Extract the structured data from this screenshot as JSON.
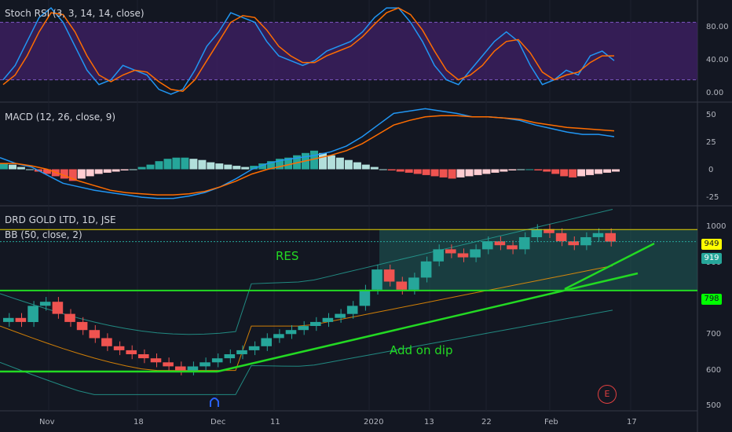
{
  "panels": {
    "stoch": {
      "label": "Stoch RSI (3, 3, 14, 14, close)",
      "ticks": [
        "80.00",
        "40.00",
        "0.00"
      ]
    },
    "macd": {
      "label": "MACD (12, 26, close, 9)",
      "ticks": [
        "50",
        "25",
        "0",
        "-25"
      ]
    },
    "price": {
      "label": "DRD GOLD LTD, 1D, JSE",
      "bb_label": "BB (50, close, 2)",
      "ticks": [
        "1000",
        "900",
        "800",
        "700",
        "600",
        "500"
      ]
    }
  },
  "x_labels": [
    "Nov",
    "18",
    "Dec",
    "11",
    "2020",
    "13",
    "22",
    "Feb",
    "17"
  ],
  "annotations": {
    "res": "RES",
    "add_on_dip": "Add on dip",
    "earnings": "E"
  },
  "badges": [
    {
      "text": "949",
      "bg": "#ffff00",
      "fg": "#131722"
    },
    {
      "text": "919",
      "bg": "#26a69a",
      "fg": "#ffffff"
    },
    {
      "text": "798",
      "bg": "#00ff00",
      "fg": "#131722"
    }
  ],
  "colors": {
    "up": "#26a69a",
    "down": "#ef5350",
    "blue": "#2196f3",
    "orange": "#ff6d00",
    "green_line": "#23d923",
    "yellow_line": "#e7d300",
    "purple_band": "#3b1f5e"
  },
  "chart_data": [
    {
      "type": "line",
      "title": "Stoch RSI (3, 3, 14, 14, close)",
      "ylim": [
        0,
        100
      ],
      "bands": [
        20,
        80
      ],
      "series": [
        {
          "name": "K",
          "values": [
            20,
            35,
            60,
            85,
            95,
            80,
            55,
            30,
            15,
            20,
            35,
            30,
            25,
            10,
            5,
            10,
            30,
            55,
            70,
            90,
            85,
            80,
            60,
            45,
            40,
            35,
            40,
            50,
            55,
            60,
            70,
            85,
            95,
            95,
            80,
            60,
            35,
            20,
            15,
            30,
            45,
            60,
            70,
            60,
            35,
            15,
            20,
            30,
            25,
            45,
            50,
            40
          ]
        },
        {
          "name": "D",
          "values": [
            15,
            25,
            45,
            70,
            90,
            88,
            70,
            45,
            25,
            18,
            25,
            30,
            28,
            18,
            10,
            8,
            20,
            40,
            60,
            80,
            87,
            85,
            72,
            55,
            45,
            38,
            38,
            45,
            50,
            55,
            65,
            78,
            90,
            95,
            88,
            72,
            50,
            30,
            20,
            25,
            35,
            50,
            60,
            62,
            48,
            28,
            20,
            25,
            28,
            38,
            45,
            45
          ]
        }
      ]
    },
    {
      "type": "bar",
      "title": "MACD (12, 26, close, 9)",
      "ylim": [
        -30,
        55
      ],
      "histogram": [
        5,
        4,
        2,
        0,
        -2,
        -4,
        -6,
        -8,
        -10,
        -8,
        -6,
        -4,
        -3,
        -2,
        -1,
        0,
        2,
        4,
        7,
        9,
        10,
        10,
        9,
        8,
        6,
        5,
        4,
        3,
        2,
        3,
        5,
        7,
        9,
        10,
        12,
        14,
        16,
        14,
        12,
        10,
        8,
        6,
        4,
        2,
        0,
        -1,
        -2,
        -3,
        -4,
        -5,
        -6,
        -7,
        -8,
        -7,
        -6,
        -5,
        -4,
        -3,
        -2,
        -1,
        0,
        0,
        -1,
        -2,
        -4,
        -6,
        -7,
        -6,
        -5,
        -4,
        -3,
        -2
      ],
      "series": [
        {
          "name": "MACD",
          "values": [
            10,
            5,
            2,
            -5,
            -12,
            -15,
            -18,
            -20,
            -22,
            -24,
            -25,
            -25,
            -23,
            -20,
            -15,
            -8,
            0,
            5,
            8,
            10,
            12,
            15,
            20,
            28,
            38,
            48,
            50,
            52,
            50,
            48,
            45,
            45,
            44,
            42,
            38,
            35,
            32,
            30,
            30,
            28
          ]
        },
        {
          "name": "Signal",
          "values": [
            5,
            5,
            3,
            0,
            -5,
            -10,
            -14,
            -18,
            -20,
            -21,
            -22,
            -22,
            -21,
            -19,
            -15,
            -10,
            -4,
            0,
            3,
            6,
            9,
            12,
            16,
            22,
            30,
            38,
            42,
            45,
            46,
            46,
            45,
            45,
            44,
            43,
            40,
            38,
            36,
            35,
            34,
            33
          ]
        }
      ]
    },
    {
      "type": "candlestick",
      "title": "DRD GOLD LTD, 1D, JSE",
      "ylim": [
        500,
        1000
      ],
      "x_labels": [
        "Nov",
        "18",
        "Dec",
        "11",
        "2020",
        "13",
        "22",
        "Feb",
        "17"
      ],
      "close": [
        730,
        720,
        760,
        770,
        740,
        720,
        700,
        680,
        660,
        650,
        640,
        630,
        620,
        610,
        600,
        610,
        620,
        630,
        640,
        650,
        660,
        680,
        690,
        700,
        710,
        720,
        730,
        740,
        760,
        800,
        850,
        820,
        800,
        830,
        870,
        900,
        890,
        880,
        900,
        920,
        910,
        900,
        930,
        950,
        940,
        920,
        910,
        930,
        940,
        919
      ],
      "levels": {
        "res": 949,
        "support": 798,
        "current": 919
      }
    }
  ]
}
